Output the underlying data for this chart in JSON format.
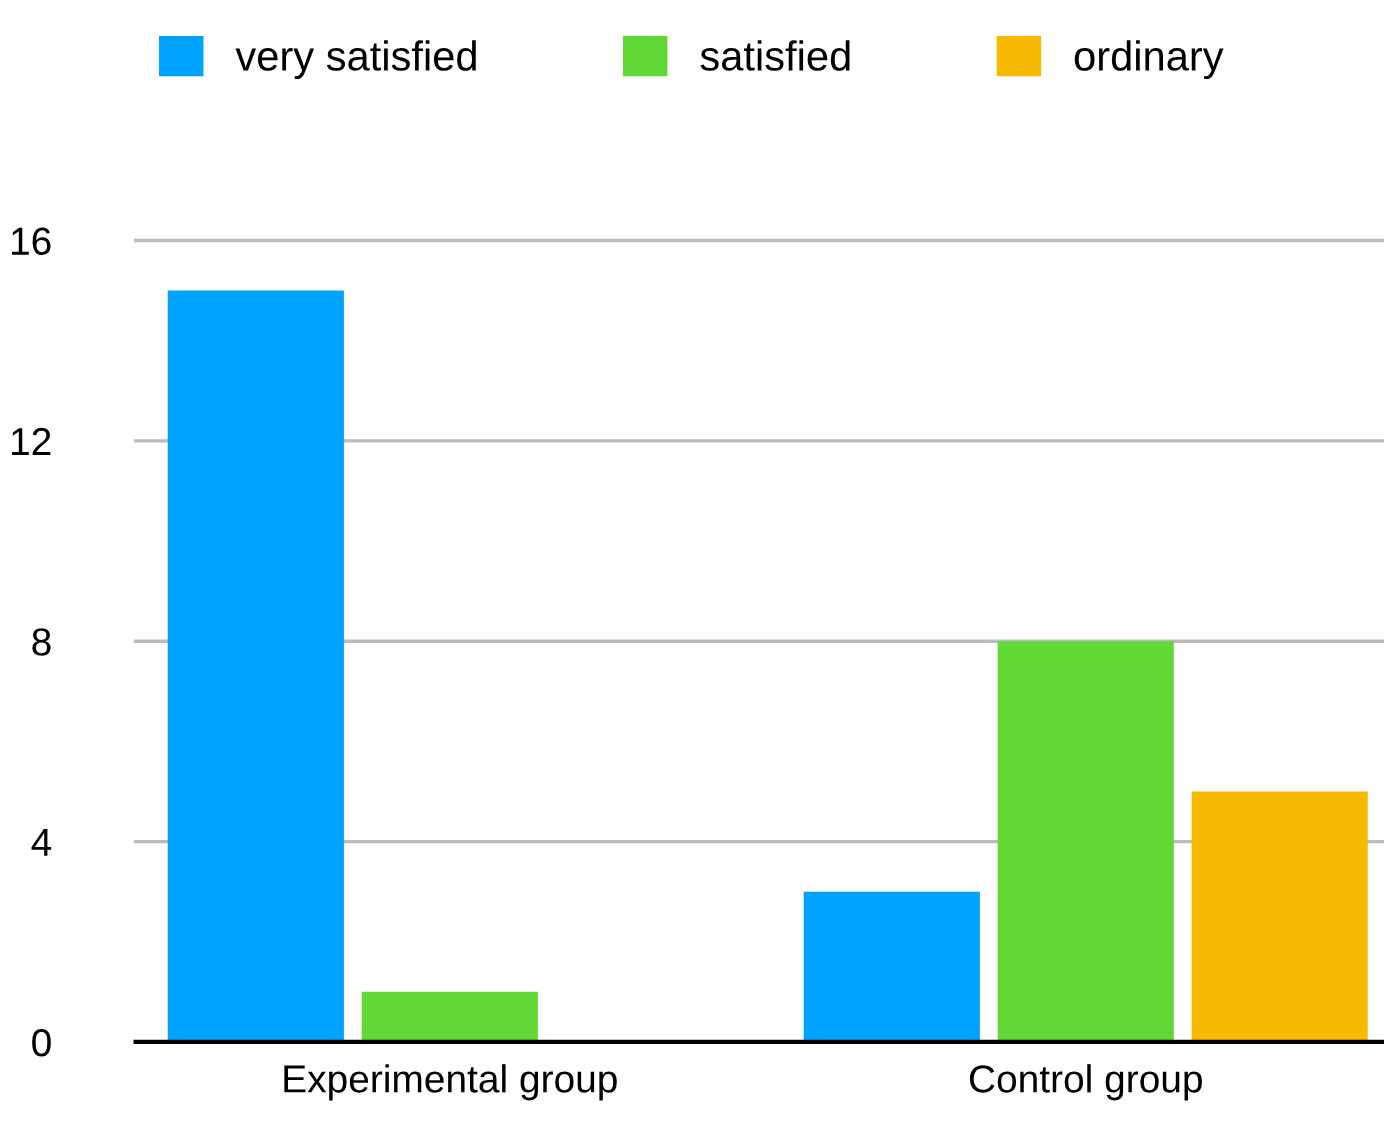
{
  "chart_data": {
    "type": "bar",
    "categories": [
      "Experimental group",
      "Control group"
    ],
    "series": [
      {
        "name": "very satisfied",
        "color": "#00a2ff",
        "values": [
          15,
          3
        ]
      },
      {
        "name": "satisfied",
        "color": "#61d836",
        "values": [
          1,
          8
        ]
      },
      {
        "name": "ordinary",
        "color": "#f8ba00",
        "values": [
          null,
          5
        ]
      }
    ],
    "ylim": [
      0,
      16
    ],
    "yticks": [
      0,
      4,
      8,
      12,
      16
    ],
    "grid": "y",
    "legend": "top"
  }
}
